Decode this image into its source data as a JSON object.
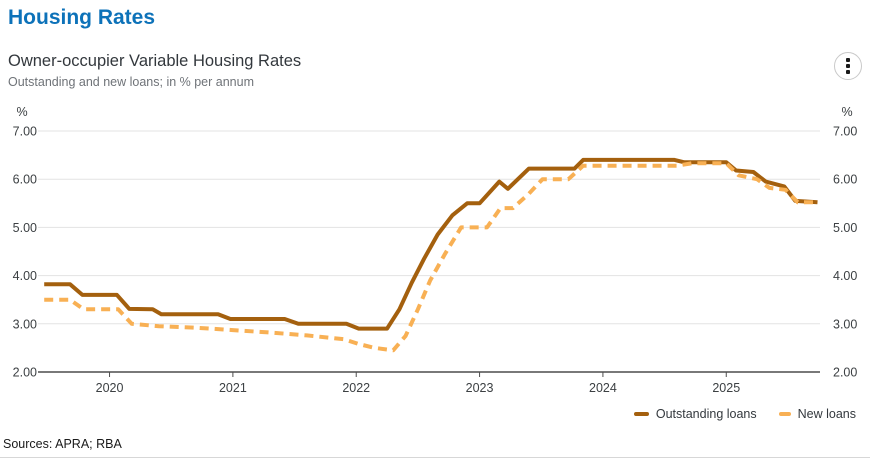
{
  "page_title": "Housing Rates",
  "sources": "Sources: APRA; RBA",
  "chart_data": {
    "type": "line",
    "title": "Owner-occupier Variable Housing Rates",
    "subtitle": "Outstanding and new loans; in % per annum",
    "y_unit": "%",
    "x_unit": "decimal_year",
    "xlim": [
      2019.42,
      2025.76
    ],
    "ylim": [
      2,
      7
    ],
    "x_ticks": [
      2020,
      2021,
      2022,
      2023,
      2024,
      2025
    ],
    "y_ticks": [
      2,
      3,
      4,
      5,
      6,
      7
    ],
    "y_tick_decimals": 2,
    "grid": "horizontal",
    "legend_position": "bottom-right",
    "colors": {
      "grid": "#e3e3e3",
      "axis": "#4d4d4d",
      "tick_text": "#3c4043"
    },
    "series": [
      {
        "id": "outstanding-loans",
        "name": "Outstanding loans",
        "color": "#a4600e",
        "dash": "solid",
        "width": 4,
        "points": [
          [
            2019.47,
            3.82
          ],
          [
            2019.68,
            3.82
          ],
          [
            2019.78,
            3.6
          ],
          [
            2020.06,
            3.6
          ],
          [
            2020.16,
            3.31
          ],
          [
            2020.35,
            3.3
          ],
          [
            2020.42,
            3.2
          ],
          [
            2020.88,
            3.2
          ],
          [
            2020.98,
            3.1
          ],
          [
            2021.42,
            3.1
          ],
          [
            2021.53,
            3.0
          ],
          [
            2021.92,
            3.0
          ],
          [
            2022.02,
            2.9
          ],
          [
            2022.25,
            2.9
          ],
          [
            2022.35,
            3.3
          ],
          [
            2022.45,
            3.85
          ],
          [
            2022.55,
            4.35
          ],
          [
            2022.66,
            4.85
          ],
          [
            2022.78,
            5.25
          ],
          [
            2022.9,
            5.5
          ],
          [
            2023.0,
            5.5
          ],
          [
            2023.16,
            5.95
          ],
          [
            2023.23,
            5.8
          ],
          [
            2023.4,
            6.22
          ],
          [
            2023.77,
            6.22
          ],
          [
            2023.84,
            6.4
          ],
          [
            2024.58,
            6.4
          ],
          [
            2024.66,
            6.35
          ],
          [
            2025.0,
            6.35
          ],
          [
            2025.08,
            6.18
          ],
          [
            2025.22,
            6.15
          ],
          [
            2025.32,
            5.95
          ],
          [
            2025.47,
            5.85
          ],
          [
            2025.56,
            5.55
          ],
          [
            2025.74,
            5.52
          ]
        ]
      },
      {
        "id": "new-loans",
        "name": "New loans",
        "color": "#f8b054",
        "dash": "dashed",
        "width": 4,
        "points": [
          [
            2019.47,
            3.5
          ],
          [
            2019.68,
            3.5
          ],
          [
            2019.79,
            3.3
          ],
          [
            2020.07,
            3.3
          ],
          [
            2020.18,
            3.0
          ],
          [
            2020.4,
            2.95
          ],
          [
            2020.7,
            2.92
          ],
          [
            2021.0,
            2.87
          ],
          [
            2021.3,
            2.82
          ],
          [
            2021.6,
            2.76
          ],
          [
            2021.9,
            2.68
          ],
          [
            2022.02,
            2.58
          ],
          [
            2022.15,
            2.5
          ],
          [
            2022.3,
            2.45
          ],
          [
            2022.4,
            2.75
          ],
          [
            2022.5,
            3.3
          ],
          [
            2022.6,
            3.9
          ],
          [
            2022.72,
            4.45
          ],
          [
            2022.85,
            5.0
          ],
          [
            2023.06,
            5.0
          ],
          [
            2023.17,
            5.4
          ],
          [
            2023.27,
            5.4
          ],
          [
            2023.4,
            5.7
          ],
          [
            2023.51,
            6.0
          ],
          [
            2023.72,
            6.0
          ],
          [
            2023.84,
            6.28
          ],
          [
            2024.6,
            6.28
          ],
          [
            2024.72,
            6.33
          ],
          [
            2025.0,
            6.33
          ],
          [
            2025.1,
            6.08
          ],
          [
            2025.25,
            6.0
          ],
          [
            2025.35,
            5.82
          ],
          [
            2025.48,
            5.78
          ],
          [
            2025.58,
            5.52
          ],
          [
            2025.74,
            5.52
          ]
        ]
      }
    ]
  }
}
